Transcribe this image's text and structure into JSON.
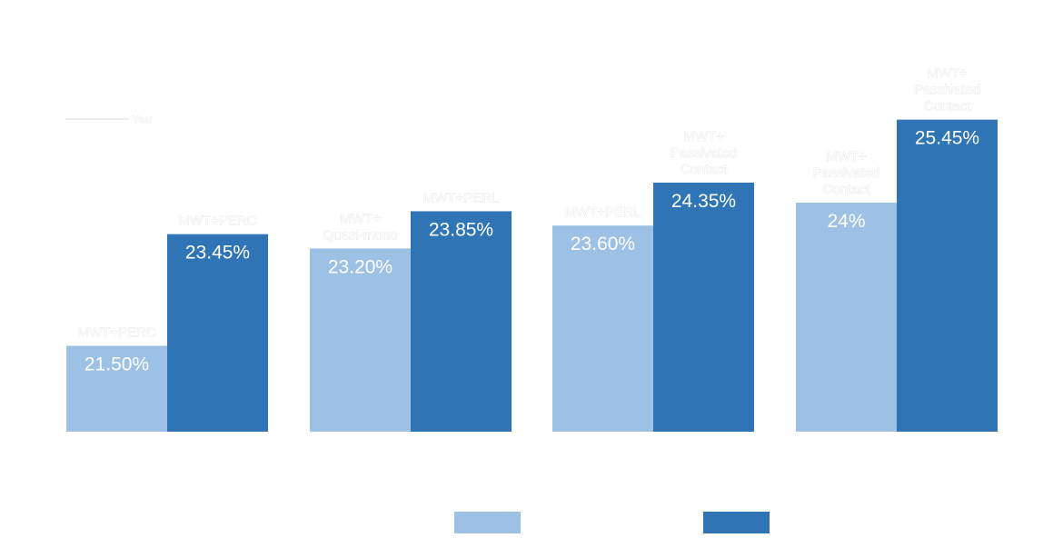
{
  "chart_data": {
    "type": "bar",
    "title": "",
    "xlabel": "",
    "ylabel": "",
    "axis_arrow_label": "Year",
    "ylim": [
      20,
      25.5
    ],
    "grid": false,
    "legend_placement": "bottom",
    "colors": [
      "#9dc1e5",
      "#2f75b5"
    ],
    "groups": [
      {
        "bars": [
          {
            "value": 21.5,
            "value_label": "21.50%",
            "label": [
              "MWT+PERC"
            ]
          },
          {
            "value": 23.45,
            "value_label": "23.45%",
            "label": [
              "MWT+PERC"
            ]
          }
        ]
      },
      {
        "bars": [
          {
            "value": 23.2,
            "value_label": "23.20%",
            "label": [
              "MWT+",
              "Quasi-mono"
            ]
          },
          {
            "value": 23.85,
            "value_label": "23.85%",
            "label": [
              "MWT+PERL"
            ]
          }
        ]
      },
      {
        "bars": [
          {
            "value": 23.6,
            "value_label": "23.60%",
            "label": [
              "MWT+PERL"
            ]
          },
          {
            "value": 24.35,
            "value_label": "24.35%",
            "label": [
              "MWT+",
              "Passivated",
              "Contact"
            ]
          }
        ]
      },
      {
        "bars": [
          {
            "value": 24.0,
            "value_label": "24%",
            "label": [
              "MWT+",
              "Passivated",
              "Contact"
            ]
          },
          {
            "value": 25.45,
            "value_label": "25.45%",
            "label": [
              "MWT+",
              "Passivated",
              "Contact"
            ]
          }
        ]
      }
    ]
  }
}
